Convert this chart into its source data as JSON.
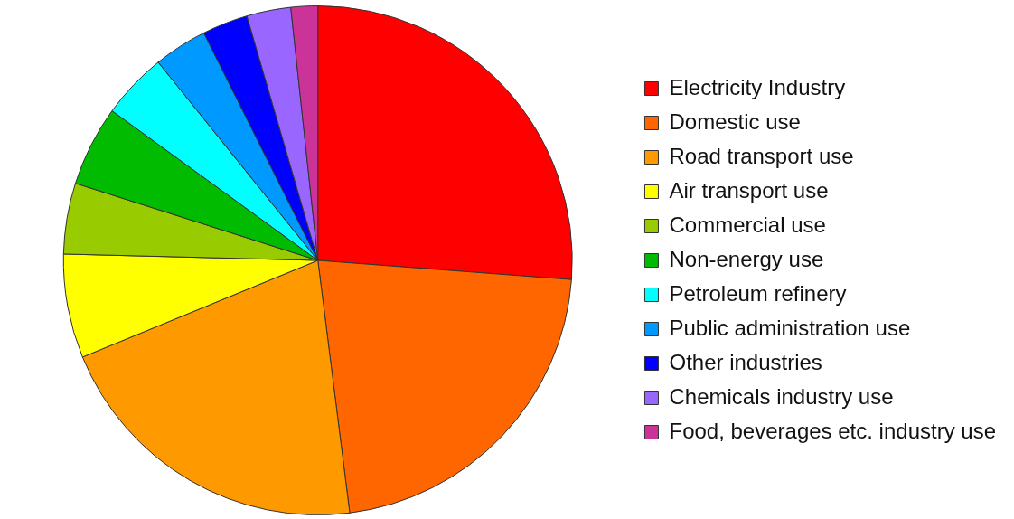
{
  "chart_data": {
    "type": "pie",
    "categories": [
      "Electricity Industry",
      "Domestic use",
      "Road transport use",
      "Air transport use",
      "Commercial use",
      "Non-energy use",
      "Petroleum refinery",
      "Public administration use",
      "Other industries",
      "Chemicals industry use",
      "Food, beverages etc. industry use"
    ],
    "values": [
      26.2,
      21.8,
      20.8,
      6.6,
      4.5,
      5.1,
      4.2,
      3.4,
      2.9,
      2.8,
      1.7
    ],
    "colors": [
      "#ff0000",
      "#ff6600",
      "#ff9900",
      "#ffff00",
      "#99cc00",
      "#00bb00",
      "#00ffff",
      "#0099ff",
      "#0000ff",
      "#9966ff",
      "#cc3399"
    ],
    "legend": "right"
  }
}
